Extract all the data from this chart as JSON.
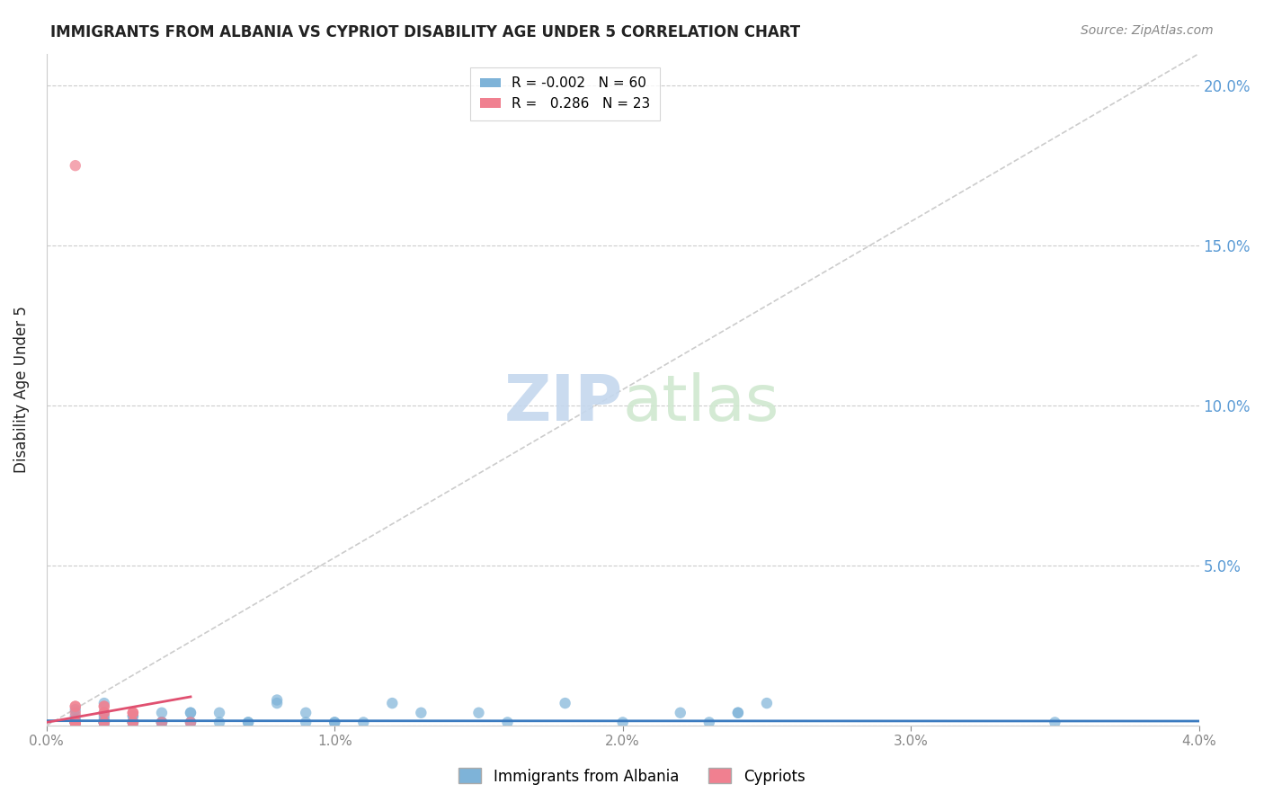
{
  "title": "IMMIGRANTS FROM ALBANIA VS CYPRIOT DISABILITY AGE UNDER 5 CORRELATION CHART",
  "source": "Source: ZipAtlas.com",
  "xlabel": "",
  "ylabel": "Disability Age Under 5",
  "xmin": 0.0,
  "xmax": 0.04,
  "ymin": 0.0,
  "ymax": 0.21,
  "yticks": [
    0.0,
    0.05,
    0.1,
    0.15,
    0.2
  ],
  "ytick_labels": [
    "",
    "5.0%",
    "10.0%",
    "15.0%",
    "20.0%"
  ],
  "xtick_labels": [
    "0.0%",
    "1.0%",
    "2.0%",
    "3.0%",
    "4.0%"
  ],
  "xticks": [
    0.0,
    0.01,
    0.02,
    0.03,
    0.04
  ],
  "legend_entries": [
    {
      "label": "R = -0.002   N = 60",
      "color": "#aac4e0"
    },
    {
      "label": "R =   0.286   N = 23",
      "color": "#f4a0b0"
    }
  ],
  "title_color": "#222222",
  "source_color": "#888888",
  "axis_label_color": "#222222",
  "tick_color_right": "#5b9bd5",
  "tick_color_bottom": "#888888",
  "grid_color": "#cccccc",
  "watermark_text": "ZIPatlas",
  "watermark_color_zip": "#c5d8ee",
  "watermark_color_atlas": "#d0e8d0",
  "albania_scatter": [
    [
      0.001,
      0.001
    ],
    [
      0.001,
      0.005
    ],
    [
      0.001,
      0.003
    ],
    [
      0.001,
      0.001
    ],
    [
      0.001,
      0.001
    ],
    [
      0.001,
      0.002
    ],
    [
      0.001,
      0.001
    ],
    [
      0.001,
      0.001
    ],
    [
      0.001,
      0.001
    ],
    [
      0.001,
      0.001
    ],
    [
      0.002,
      0.001
    ],
    [
      0.002,
      0.001
    ],
    [
      0.002,
      0.001
    ],
    [
      0.002,
      0.001
    ],
    [
      0.002,
      0.003
    ],
    [
      0.002,
      0.004
    ],
    [
      0.002,
      0.001
    ],
    [
      0.002,
      0.001
    ],
    [
      0.002,
      0.002
    ],
    [
      0.002,
      0.007
    ],
    [
      0.002,
      0.001
    ],
    [
      0.003,
      0.001
    ],
    [
      0.003,
      0.003
    ],
    [
      0.003,
      0.001
    ],
    [
      0.003,
      0.003
    ],
    [
      0.003,
      0.001
    ],
    [
      0.003,
      0.001
    ],
    [
      0.003,
      0.001
    ],
    [
      0.004,
      0.001
    ],
    [
      0.004,
      0.001
    ],
    [
      0.004,
      0.004
    ],
    [
      0.004,
      0.001
    ],
    [
      0.004,
      0.001
    ],
    [
      0.005,
      0.001
    ],
    [
      0.005,
      0.001
    ],
    [
      0.005,
      0.004
    ],
    [
      0.005,
      0.004
    ],
    [
      0.006,
      0.001
    ],
    [
      0.006,
      0.004
    ],
    [
      0.007,
      0.001
    ],
    [
      0.007,
      0.001
    ],
    [
      0.008,
      0.008
    ],
    [
      0.008,
      0.007
    ],
    [
      0.009,
      0.001
    ],
    [
      0.009,
      0.004
    ],
    [
      0.01,
      0.001
    ],
    [
      0.01,
      0.001
    ],
    [
      0.011,
      0.001
    ],
    [
      0.012,
      0.007
    ],
    [
      0.013,
      0.004
    ],
    [
      0.015,
      0.004
    ],
    [
      0.016,
      0.001
    ],
    [
      0.018,
      0.007
    ],
    [
      0.02,
      0.001
    ],
    [
      0.022,
      0.004
    ],
    [
      0.023,
      0.001
    ],
    [
      0.024,
      0.004
    ],
    [
      0.024,
      0.004
    ],
    [
      0.025,
      0.007
    ],
    [
      0.035,
      0.001
    ]
  ],
  "cypriot_scatter": [
    [
      0.001,
      0.001
    ],
    [
      0.001,
      0.001
    ],
    [
      0.001,
      0.001
    ],
    [
      0.001,
      0.001
    ],
    [
      0.001,
      0.001
    ],
    [
      0.001,
      0.001
    ],
    [
      0.001,
      0.006
    ],
    [
      0.001,
      0.006
    ],
    [
      0.001,
      0.004
    ],
    [
      0.002,
      0.004
    ],
    [
      0.002,
      0.006
    ],
    [
      0.002,
      0.006
    ],
    [
      0.002,
      0.004
    ],
    [
      0.002,
      0.001
    ],
    [
      0.002,
      0.001
    ],
    [
      0.003,
      0.001
    ],
    [
      0.003,
      0.004
    ],
    [
      0.003,
      0.001
    ],
    [
      0.003,
      0.004
    ],
    [
      0.003,
      0.004
    ],
    [
      0.004,
      0.001
    ],
    [
      0.005,
      0.001
    ],
    [
      0.001,
      0.175
    ]
  ],
  "albania_line_x": [
    0.0,
    0.04
  ],
  "albania_line_y": [
    0.0015,
    0.0014
  ],
  "cypriot_line_x": [
    0.0,
    0.005
  ],
  "cypriot_line_y": [
    0.001,
    0.009
  ],
  "diagonal_line_x": [
    0.0,
    0.04
  ],
  "diagonal_line_y": [
    0.0,
    0.21
  ],
  "albania_color": "#7eb3d8",
  "cypriot_color": "#f08090",
  "albania_line_color": "#3a7abf",
  "cypriot_line_color": "#e05070",
  "diagonal_color": "#cccccc"
}
